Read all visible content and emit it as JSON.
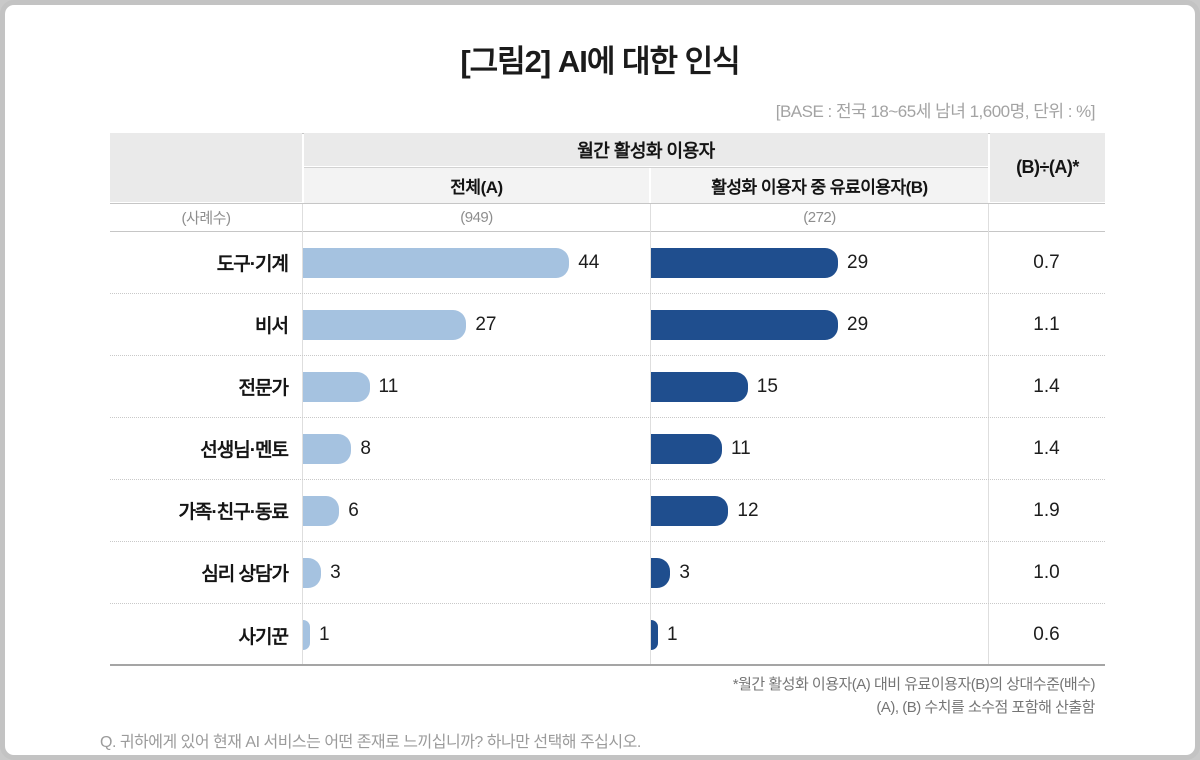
{
  "title": "[그림2] AI에 대한 인식",
  "base_note": "[BASE : 전국 18~65세 남녀 1,600명, 단위 : %]",
  "table": {
    "group_header": "월간 활성화 이용자",
    "col_a_header": "전체(A)",
    "col_b_header": "활성화 이용자 중 유료이용자(B)",
    "ratio_header": "(B)÷(A)*",
    "case_label": "(사례수)",
    "case_a": "(949)",
    "case_b": "(272)",
    "rows": [
      {
        "label": "도구·기계",
        "a": 44,
        "b": 29,
        "ratio": "0.7"
      },
      {
        "label": "비서",
        "a": 27,
        "b": 29,
        "ratio": "1.1"
      },
      {
        "label": "전문가",
        "a": 11,
        "b": 15,
        "ratio": "1.4"
      },
      {
        "label": "선생님·멘토",
        "a": 8,
        "b": 11,
        "ratio": "1.4"
      },
      {
        "label": "가족·친구·동료",
        "a": 6,
        "b": 12,
        "ratio": "1.9"
      },
      {
        "label": "심리 상담가",
        "a": 3,
        "b": 3,
        "ratio": "1.0"
      },
      {
        "label": "사기꾼",
        "a": 1,
        "b": 1,
        "ratio": "0.6"
      }
    ]
  },
  "footnotes": {
    "line1": "*월간 활성화 이용자(A) 대비 유료이용자(B)의 상대수준(배수)",
    "line2": "(A), (B) 수치를 소수점 포함해 산출함"
  },
  "question": "Q. 귀하에게 있어 현재 AI 서비스는 어떤 존재로 느끼십니까? 하나만 선택해 주십시오.",
  "colors": {
    "bar_light": "#a5c2e0",
    "bar_dark": "#1f4e8e",
    "header_bg": "#eaeaea",
    "subheader_bg": "#f3f3f3"
  },
  "chart_data": {
    "type": "bar",
    "title": "[그림2] AI에 대한 인식",
    "base": "전국 18~65세 남녀 1,600명",
    "unit": "%",
    "categories": [
      "도구·기계",
      "비서",
      "전문가",
      "선생님·멘토",
      "가족·친구·동료",
      "심리 상담가",
      "사기꾼"
    ],
    "series": [
      {
        "name": "월간 활성화 이용자 전체(A)",
        "n": 949,
        "values": [
          44,
          27,
          11,
          8,
          6,
          3,
          1
        ]
      },
      {
        "name": "활성화 이용자 중 유료이용자(B)",
        "n": 272,
        "values": [
          29,
          29,
          15,
          11,
          12,
          3,
          1
        ]
      },
      {
        "name": "(B)÷(A)",
        "values": [
          0.7,
          1.1,
          1.4,
          1.4,
          1.9,
          1.0,
          0.6
        ]
      }
    ],
    "orientation": "horizontal",
    "xlim": [
      0,
      55
    ],
    "grid": false,
    "legend_position": "column-headers"
  }
}
